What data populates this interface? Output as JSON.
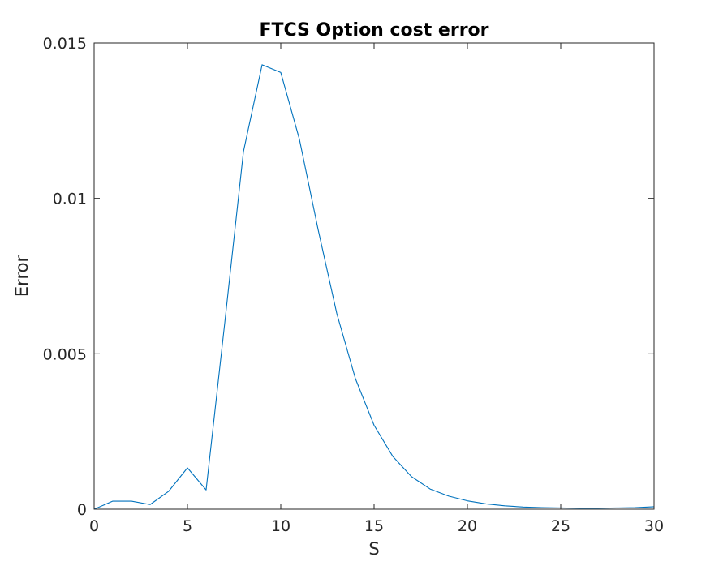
{
  "chart_data": {
    "type": "line",
    "title": "FTCS Option cost error",
    "xlabel": "S",
    "ylabel": "Error",
    "xlim": [
      0,
      30
    ],
    "ylim": [
      0,
      0.015
    ],
    "xticks": [
      0,
      5,
      10,
      15,
      20,
      25,
      30
    ],
    "xtick_labels": [
      "0",
      "5",
      "10",
      "15",
      "20",
      "25",
      "30"
    ],
    "yticks": [
      0,
      0.005,
      0.01,
      0.015
    ],
    "ytick_labels": [
      "0",
      "0.005",
      "0.01",
      "0.015"
    ],
    "grid": false,
    "box": true,
    "series": [
      {
        "color": "#0072BD",
        "x": [
          0,
          1,
          2,
          3,
          4,
          5,
          6,
          7,
          8,
          9,
          10,
          11,
          12,
          13,
          14,
          15,
          16,
          17,
          18,
          19,
          20,
          21,
          22,
          23,
          24,
          25,
          26,
          27,
          28,
          29,
          30
        ],
        "y": [
          0.0,
          0.00026,
          0.00026,
          0.00015,
          0.00058,
          0.00133,
          0.00062,
          0.006,
          0.0115,
          0.0143,
          0.01405,
          0.0119,
          0.009,
          0.0063,
          0.0042,
          0.0027,
          0.0017,
          0.00105,
          0.00065,
          0.00042,
          0.00027,
          0.00017,
          0.00011,
          7e-05,
          5e-05,
          4e-05,
          3e-05,
          3e-05,
          4e-05,
          5e-05,
          8e-05
        ]
      }
    ]
  }
}
